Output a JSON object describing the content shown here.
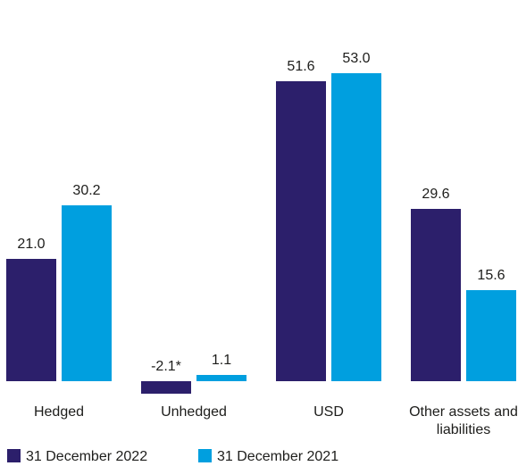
{
  "chart_data": {
    "type": "bar",
    "categories": [
      "Hedged",
      "Unhedged",
      "USD",
      "Other assets and liabilities"
    ],
    "series": [
      {
        "name": "31 December 2022",
        "color": "#2c1f6b",
        "values": [
          21.0,
          -2.1,
          51.6,
          29.6
        ],
        "value_labels": [
          "21.0",
          "-2.1*",
          "51.6",
          "29.6"
        ]
      },
      {
        "name": "31 December 2021",
        "color": "#009fdf",
        "values": [
          30.2,
          1.1,
          53.0,
          15.6
        ],
        "value_labels": [
          "30.2",
          "1.1",
          "53.0",
          "15.6"
        ]
      }
    ],
    "ylim": [
      -5,
      60
    ]
  }
}
